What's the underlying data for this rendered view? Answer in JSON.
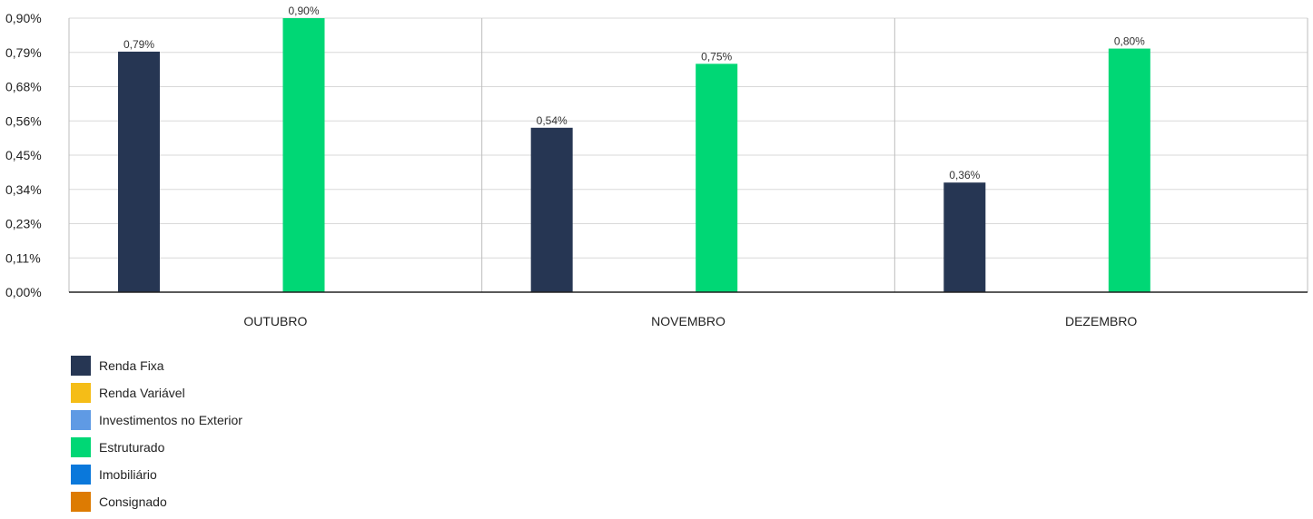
{
  "chart_data": {
    "type": "bar",
    "categories": [
      "OUTUBRO",
      "NOVEMBRO",
      "DEZEMBRO"
    ],
    "y_tick_labels": [
      "0,00%",
      "0,11%",
      "0,23%",
      "0,34%",
      "0,45%",
      "0,56%",
      "0,68%",
      "0,79%",
      "0,90%"
    ],
    "ylim": [
      0,
      0.9
    ],
    "grid": true,
    "legend_position": "bottom-left",
    "series": [
      {
        "name": "Renda Fixa",
        "color": "#263653",
        "values": [
          0.79,
          0.54,
          0.36
        ],
        "labels": [
          "0,79%",
          "0,54%",
          "0,36%"
        ]
      },
      {
        "name": "Renda Variável",
        "color": "#F5BD17",
        "values": [
          null,
          null,
          null
        ],
        "labels": [
          "",
          "",
          ""
        ]
      },
      {
        "name": "Investimentos no Exterior",
        "color": "#5F9AE4",
        "values": [
          null,
          null,
          null
        ],
        "labels": [
          "",
          "",
          ""
        ]
      },
      {
        "name": "Estruturado",
        "color": "#00D775",
        "values": [
          0.9,
          0.75,
          0.8
        ],
        "labels": [
          "0,90%",
          "0,75%",
          "0,80%"
        ]
      },
      {
        "name": "Imobiliário",
        "color": "#0A78DB",
        "values": [
          null,
          null,
          null
        ],
        "labels": [
          "",
          "",
          ""
        ]
      },
      {
        "name": "Consignado",
        "color": "#DD7B02",
        "values": [
          null,
          null,
          null
        ],
        "labels": [
          "",
          "",
          ""
        ]
      }
    ]
  }
}
